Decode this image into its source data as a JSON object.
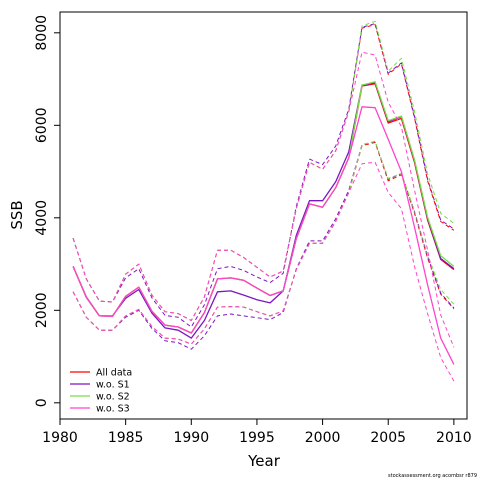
{
  "chart_data": {
    "type": "line",
    "xlabel": "Year",
    "ylabel": "SSB",
    "xlim": [
      1980,
      2011
    ],
    "ylim": [
      -350,
      8450
    ],
    "xticks": [
      "1980",
      "1985",
      "1990",
      "1995",
      "2000",
      "2005",
      "2010"
    ],
    "yticks": [
      "0",
      "2000",
      "4000",
      "6000",
      "8000"
    ],
    "grid": false,
    "legend_position": "bottom-left",
    "x": [
      1981,
      1982,
      1983,
      1984,
      1985,
      1986,
      1987,
      1988,
      1989,
      1990,
      1991,
      1992,
      1993,
      1994,
      1995,
      1996,
      1997,
      1998,
      1999,
      2000,
      2001,
      2002,
      2003,
      2004,
      2005,
      2006,
      2007,
      2008,
      2009,
      2010
    ],
    "series": [
      {
        "name": "All data",
        "color": "#ff0000",
        "style": "solid",
        "values": [
          2950,
          2280,
          1880,
          1870,
          2300,
          2500,
          1980,
          1680,
          1640,
          1510,
          1950,
          2680,
          2700,
          2650,
          2480,
          2320,
          2420,
          3550,
          4300,
          4230,
          4650,
          5300,
          6850,
          6900,
          6050,
          6150,
          5200,
          3950,
          3100,
          2880
        ]
      },
      {
        "name": "",
        "color": "#ff0000",
        "style": "dashed",
        "values": [
          3560,
          2680,
          2200,
          2180,
          2780,
          3000,
          2330,
          1970,
          1930,
          1780,
          2290,
          3300,
          3300,
          3140,
          2930,
          2720,
          2850,
          4200,
          5200,
          5050,
          5450,
          6300,
          8100,
          8180,
          7100,
          7330,
          6160,
          4800,
          3920,
          3730
        ]
      },
      {
        "name": "",
        "color": "#ff0000",
        "style": "dashed",
        "values": [
          2400,
          1850,
          1570,
          1570,
          1880,
          2020,
          1650,
          1400,
          1380,
          1270,
          1600,
          2070,
          2080,
          2070,
          1970,
          1880,
          1990,
          2880,
          3450,
          3450,
          3920,
          4550,
          5560,
          5630,
          4800,
          4930,
          4100,
          3130,
          2350,
          2030
        ]
      },
      {
        "name": "w.o. S1",
        "color": "#7b16c2",
        "style": "solid",
        "values": [
          2950,
          2290,
          1880,
          1880,
          2260,
          2450,
          1940,
          1620,
          1570,
          1400,
          1780,
          2400,
          2420,
          2330,
          2230,
          2160,
          2420,
          3620,
          4370,
          4370,
          4780,
          5430,
          6870,
          6920,
          6080,
          6190,
          5240,
          3980,
          3120,
          2900
        ]
      },
      {
        "name": "",
        "color": "#7b16c2",
        "style": "dashed",
        "values": [
          3560,
          2680,
          2200,
          2180,
          2700,
          2900,
          2270,
          1890,
          1850,
          1640,
          2120,
          2900,
          2950,
          2860,
          2720,
          2600,
          2800,
          4250,
          5270,
          5150,
          5550,
          6350,
          8120,
          8200,
          7130,
          7350,
          6190,
          4830,
          3950,
          3760
        ]
      },
      {
        "name": "",
        "color": "#7b16c2",
        "style": "dashed",
        "values": [
          2400,
          1850,
          1570,
          1570,
          1850,
          2000,
          1610,
          1340,
          1300,
          1160,
          1450,
          1880,
          1920,
          1880,
          1840,
          1800,
          1950,
          2900,
          3500,
          3500,
          3980,
          4600,
          5580,
          5650,
          4830,
          4960,
          4130,
          3160,
          2370,
          2050
        ]
      },
      {
        "name": "w.o. S2",
        "color": "#77dd44",
        "style": "solid",
        "values": [
          2950,
          2280,
          1880,
          1870,
          2300,
          2500,
          1980,
          1680,
          1640,
          1510,
          1950,
          2680,
          2700,
          2650,
          2480,
          2320,
          2420,
          3550,
          4300,
          4230,
          4650,
          5300,
          6870,
          6940,
          6100,
          6200,
          5250,
          4010,
          3180,
          2950
        ]
      },
      {
        "name": "",
        "color": "#77dd44",
        "style": "dashed",
        "values": [
          3560,
          2680,
          2200,
          2180,
          2780,
          3000,
          2330,
          1970,
          1930,
          1780,
          2290,
          3300,
          3300,
          3140,
          2930,
          2720,
          2850,
          4200,
          5200,
          5050,
          5450,
          6300,
          8150,
          8250,
          7170,
          7450,
          6300,
          4950,
          4100,
          3880
        ]
      },
      {
        "name": "",
        "color": "#77dd44",
        "style": "dashed",
        "values": [
          2400,
          1850,
          1570,
          1570,
          1880,
          2020,
          1650,
          1400,
          1380,
          1270,
          1600,
          2070,
          2080,
          2070,
          1970,
          1880,
          1990,
          2880,
          3450,
          3450,
          3920,
          4550,
          5580,
          5650,
          4850,
          4960,
          4150,
          3200,
          2450,
          2130
        ]
      },
      {
        "name": "w.o. S3",
        "color": "#ff44cc",
        "style": "solid",
        "values": [
          2950,
          2280,
          1880,
          1870,
          2300,
          2500,
          1980,
          1680,
          1640,
          1510,
          1950,
          2680,
          2700,
          2650,
          2480,
          2320,
          2420,
          3550,
          4300,
          4230,
          4650,
          5300,
          6400,
          6380,
          5700,
          5000,
          3800,
          2550,
          1400,
          830
        ]
      },
      {
        "name": "",
        "color": "#ff44cc",
        "style": "dashed",
        "values": [
          3560,
          2680,
          2200,
          2180,
          2780,
          3000,
          2330,
          1970,
          1930,
          1780,
          2290,
          3300,
          3300,
          3140,
          2930,
          2720,
          2850,
          4200,
          5200,
          5050,
          5450,
          6300,
          7580,
          7520,
          6500,
          5970,
          4600,
          3300,
          1900,
          1200
        ]
      },
      {
        "name": "",
        "color": "#ff44cc",
        "style": "dashed",
        "values": [
          2400,
          1850,
          1570,
          1570,
          1880,
          2020,
          1650,
          1400,
          1380,
          1270,
          1600,
          2070,
          2080,
          2070,
          1970,
          1880,
          1990,
          2880,
          3450,
          3450,
          3920,
          4550,
          5170,
          5200,
          4550,
          4200,
          2950,
          1930,
          980,
          470
        ]
      }
    ],
    "legend": [
      {
        "label": "All data",
        "color": "#ff0000"
      },
      {
        "label": "w.o. S1",
        "color": "#7b16c2"
      },
      {
        "label": "w.o. S2",
        "color": "#77dd44"
      },
      {
        "label": "w.o. S3",
        "color": "#ff44cc"
      }
    ],
    "credit": "stockassessment.org acombsr r879"
  }
}
